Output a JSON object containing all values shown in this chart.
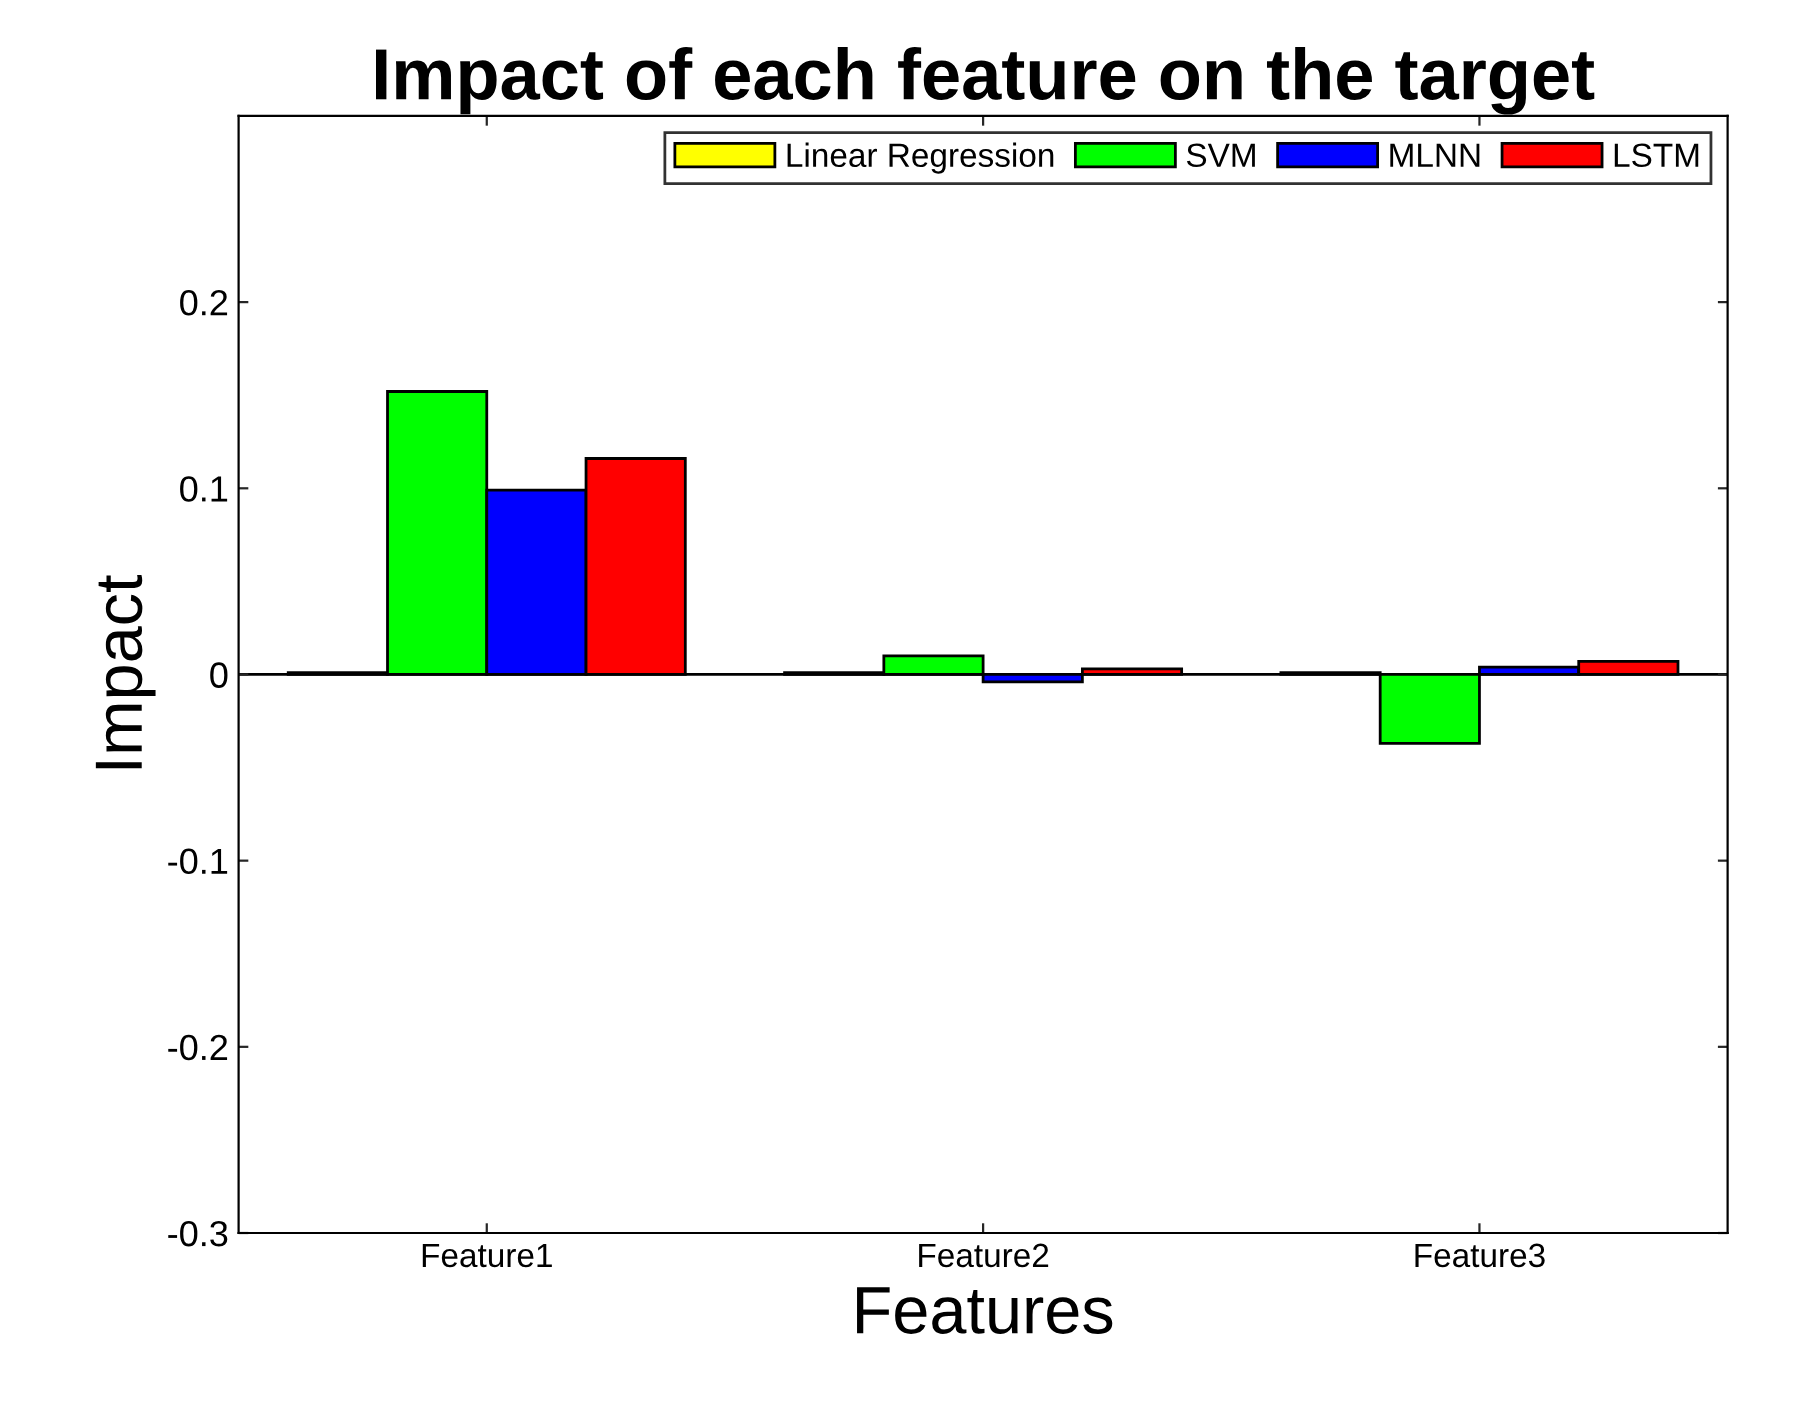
{
  "chart_data": {
    "type": "bar",
    "title": "Impact of each feature on the target",
    "xlabel": "Features",
    "ylabel": "Impact",
    "categories": [
      "Feature1",
      "Feature2",
      "Feature3"
    ],
    "series": [
      {
        "name": "Linear Regression",
        "color": "#ffff00",
        "values": [
          0.001,
          0.001,
          0.001
        ]
      },
      {
        "name": "SVM",
        "color": "#00ff00",
        "values": [
          0.152,
          0.01,
          -0.037
        ]
      },
      {
        "name": "MLNN",
        "color": "#0000ff",
        "values": [
          0.099,
          -0.004,
          0.004
        ]
      },
      {
        "name": "LSTM",
        "color": "#ff0000",
        "values": [
          0.116,
          0.003,
          0.007
        ]
      }
    ],
    "ylim": [
      -0.3,
      0.3
    ],
    "yticks": [
      -0.3,
      -0.2,
      -0.1,
      0,
      0.1,
      0.2
    ],
    "ref_lines": [
      {
        "axis": "y",
        "value": 0,
        "color": "#000000"
      }
    ],
    "grid": false,
    "legend": "top right"
  }
}
